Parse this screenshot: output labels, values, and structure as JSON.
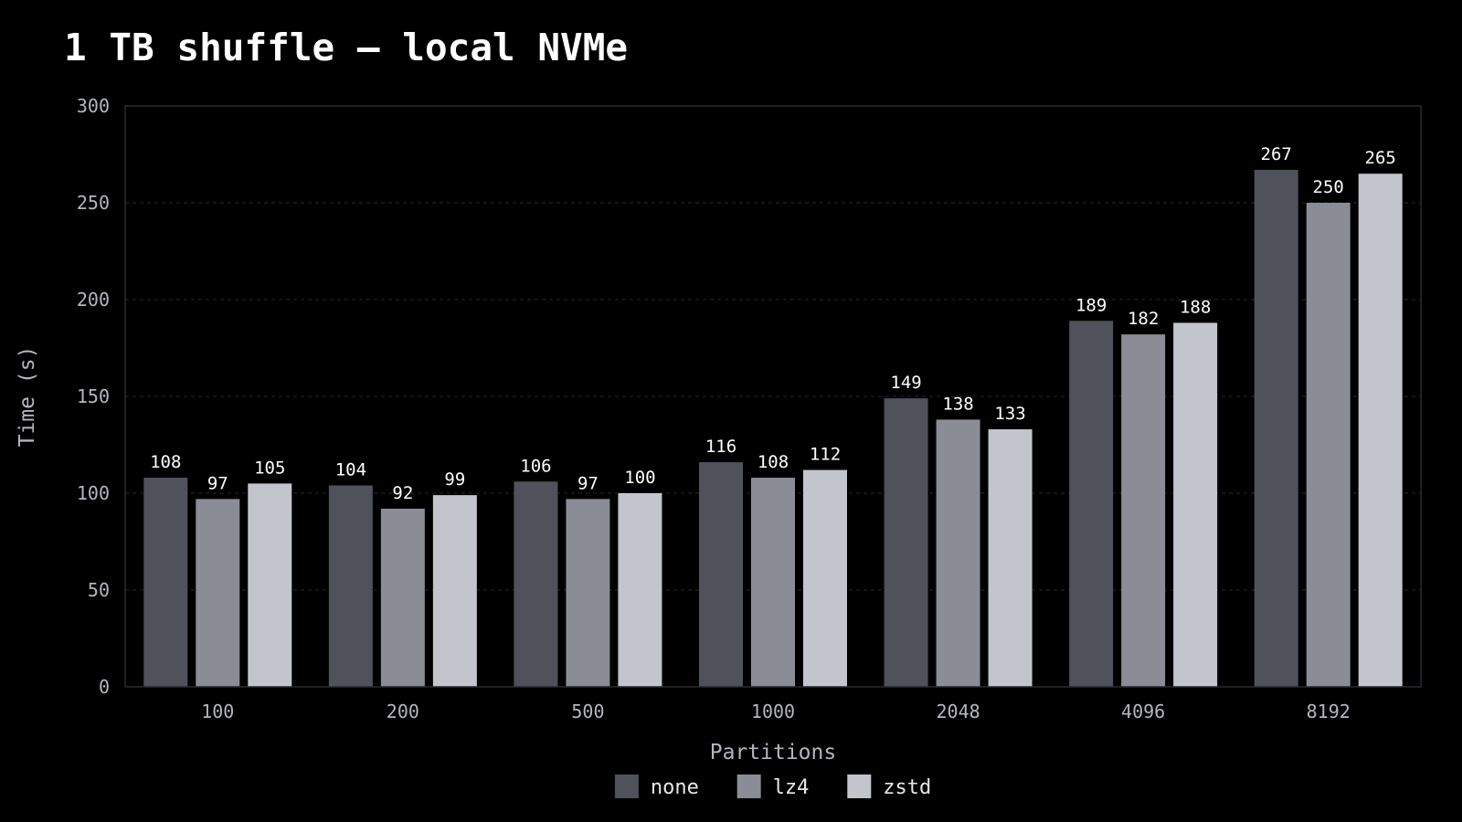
{
  "chart_data": {
    "type": "bar",
    "title": "1 TB shuffle — local NVMe",
    "xlabel": "Partitions",
    "ylabel": "Time (s)",
    "categories": [
      "100",
      "200",
      "500",
      "1000",
      "2048",
      "4096",
      "8192"
    ],
    "series": [
      {
        "name": "none",
        "color": "#4f525b",
        "values": [
          108,
          104,
          106,
          116,
          149,
          189,
          267
        ]
      },
      {
        "name": "lz4",
        "color": "#8a8c96",
        "values": [
          97,
          92,
          97,
          108,
          138,
          182,
          250
        ]
      },
      {
        "name": "zstd",
        "color": "#c3c5cc",
        "values": [
          105,
          99,
          100,
          112,
          133,
          188,
          265
        ]
      }
    ],
    "ylim": [
      0,
      300
    ],
    "yticks": [
      0,
      50,
      100,
      150,
      200,
      250,
      300
    ],
    "grid": true,
    "legend": "bottom-center",
    "data_labels": true
  },
  "colors": {
    "background": "#000000",
    "plot_border": "#2a2b30",
    "grid": "#26272c",
    "text": "#b4b6bd",
    "value_text": "#ffffff"
  }
}
